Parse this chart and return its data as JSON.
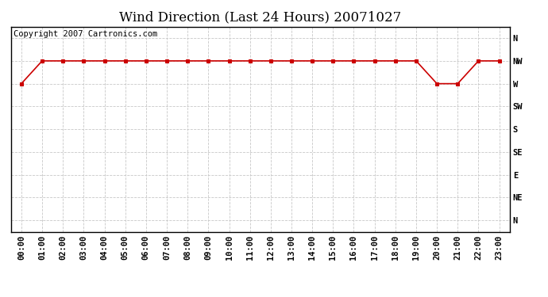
{
  "title": "Wind Direction (Last 24 Hours) 20071027",
  "copyright_text": "Copyright 2007 Cartronics.com",
  "background_color": "#ffffff",
  "plot_bg_color": "#ffffff",
  "grid_color": "#c8c8c8",
  "line_color": "#cc0000",
  "marker_color": "#cc0000",
  "border_color": "#000000",
  "x_labels": [
    "00:00",
    "01:00",
    "02:00",
    "03:00",
    "04:00",
    "05:00",
    "06:00",
    "07:00",
    "08:00",
    "09:00",
    "10:00",
    "11:00",
    "12:00",
    "13:00",
    "14:00",
    "15:00",
    "16:00",
    "17:00",
    "18:00",
    "19:00",
    "20:00",
    "21:00",
    "22:00",
    "23:00"
  ],
  "y_tick_labels": [
    "N",
    "NE",
    "E",
    "SE",
    "S",
    "SW",
    "W",
    "NW",
    "N"
  ],
  "wind_data": [
    6,
    7,
    7,
    7,
    7,
    7,
    7,
    7,
    7,
    7,
    7,
    7,
    7,
    7,
    7,
    7,
    7,
    7,
    7,
    7,
    6,
    6,
    7,
    7
  ],
  "title_fontsize": 12,
  "tick_fontsize": 7.5,
  "copyright_fontsize": 7.5,
  "line_width": 1.2,
  "marker_size": 3.5
}
